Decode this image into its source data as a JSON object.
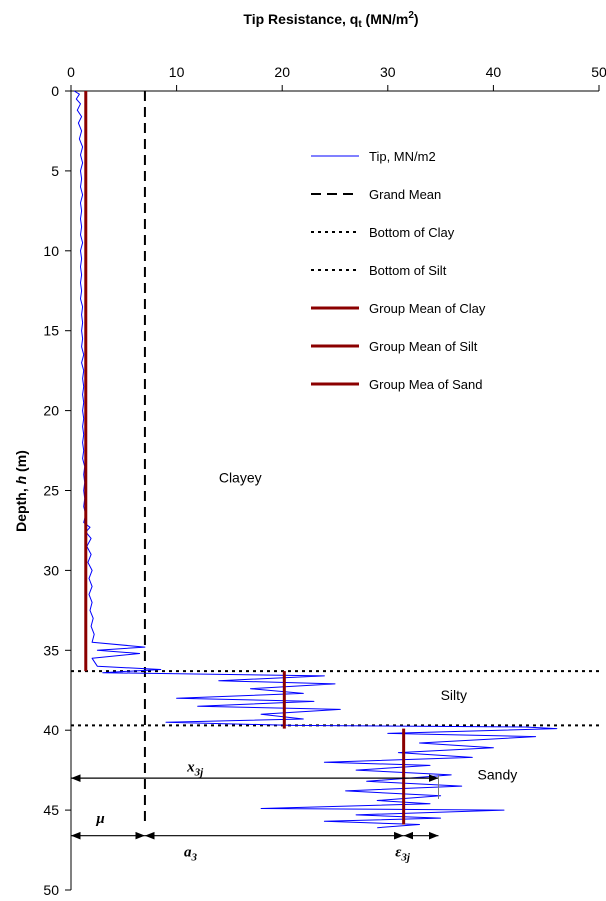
{
  "chart_data": {
    "type": "line",
    "title": "Tip Resistance, q",
    "title_sub": "t",
    "title_unit_prefix": " (MN/m",
    "title_unit_sup": "2",
    "title_unit_suffix": ")",
    "ylabel": "Depth, h (m)",
    "ylabel_prefix": "Depth, ",
    "ylabel_var": "h",
    "ylabel_suffix": " (m)",
    "x_axis_position": "top",
    "y_axis_reversed": true,
    "xlim": [
      0,
      50
    ],
    "ylim": [
      0,
      50
    ],
    "x_ticks": [
      "0",
      "10",
      "20",
      "30",
      "40",
      "50"
    ],
    "y_ticks": [
      "0",
      "5",
      "10",
      "15",
      "20",
      "25",
      "30",
      "35",
      "40",
      "45",
      "50"
    ],
    "grid": false,
    "legend_position": "upper-right inside plot",
    "legend": [
      {
        "label": "Tip, MN/m2",
        "style": "solid-thin",
        "color": "#0000ff"
      },
      {
        "label": "Grand Mean",
        "style": "dashed",
        "color": "#000000"
      },
      {
        "label": "Bottom of Clay",
        "style": "dotted",
        "color": "#000000"
      },
      {
        "label": "Bottom of Silt",
        "style": "dotted",
        "color": "#000000"
      },
      {
        "label": "Group Mean of Clay",
        "style": "solid-thick",
        "color": "#8b0000"
      },
      {
        "label": "Group Mean of Silt",
        "style": "solid-thick",
        "color": "#8b0000"
      },
      {
        "label": "Group Mea of Sand",
        "style": "solid-thick",
        "color": "#8b0000"
      }
    ],
    "series": [
      {
        "name": "Tip, MN/m2",
        "color": "#0000ff",
        "points": [
          [
            0.3,
            0.0
          ],
          [
            0.8,
            0.2
          ],
          [
            0.5,
            0.5
          ],
          [
            0.9,
            0.8
          ],
          [
            0.6,
            1.2
          ],
          [
            1.0,
            1.6
          ],
          [
            0.7,
            2.0
          ],
          [
            1.0,
            2.5
          ],
          [
            0.8,
            3.0
          ],
          [
            1.1,
            3.5
          ],
          [
            0.9,
            4.0
          ],
          [
            1.1,
            4.5
          ],
          [
            0.9,
            5.0
          ],
          [
            1.0,
            5.5
          ],
          [
            0.9,
            6.0
          ],
          [
            1.1,
            6.5
          ],
          [
            0.9,
            7.0
          ],
          [
            1.0,
            7.5
          ],
          [
            0.9,
            8.0
          ],
          [
            1.0,
            8.5
          ],
          [
            0.9,
            9.0
          ],
          [
            1.1,
            9.5
          ],
          [
            0.9,
            10.0
          ],
          [
            1.0,
            10.5
          ],
          [
            0.9,
            11.0
          ],
          [
            1.0,
            11.5
          ],
          [
            0.9,
            12.0
          ],
          [
            1.0,
            12.5
          ],
          [
            0.9,
            13.0
          ],
          [
            1.1,
            13.5
          ],
          [
            1.0,
            14.0
          ],
          [
            1.1,
            14.5
          ],
          [
            1.0,
            15.0
          ],
          [
            1.1,
            15.5
          ],
          [
            1.0,
            16.0
          ],
          [
            1.2,
            16.5
          ],
          [
            1.0,
            17.0
          ],
          [
            1.2,
            17.5
          ],
          [
            1.1,
            18.0
          ],
          [
            1.2,
            18.5
          ],
          [
            1.1,
            19.0
          ],
          [
            1.2,
            19.5
          ],
          [
            1.1,
            20.0
          ],
          [
            1.2,
            20.5
          ],
          [
            1.1,
            21.0
          ],
          [
            1.2,
            21.5
          ],
          [
            1.1,
            22.0
          ],
          [
            1.2,
            22.5
          ],
          [
            1.1,
            23.0
          ],
          [
            1.3,
            23.5
          ],
          [
            1.2,
            24.0
          ],
          [
            1.3,
            24.5
          ],
          [
            1.2,
            25.0
          ],
          [
            1.3,
            25.5
          ],
          [
            1.2,
            26.0
          ],
          [
            1.4,
            26.5
          ],
          [
            1.2,
            27.0
          ],
          [
            1.8,
            27.3
          ],
          [
            1.4,
            27.6
          ],
          [
            1.9,
            28.0
          ],
          [
            1.5,
            28.5
          ],
          [
            1.9,
            29.0
          ],
          [
            1.6,
            29.5
          ],
          [
            2.0,
            30.0
          ],
          [
            1.7,
            30.5
          ],
          [
            2.0,
            31.0
          ],
          [
            1.7,
            31.5
          ],
          [
            2.0,
            32.0
          ],
          [
            1.8,
            32.5
          ],
          [
            2.1,
            33.0
          ],
          [
            1.9,
            33.5
          ],
          [
            2.2,
            34.0
          ],
          [
            2.0,
            34.5
          ],
          [
            7.0,
            34.8
          ],
          [
            2.5,
            35.0
          ],
          [
            6.5,
            35.2
          ],
          [
            2.0,
            35.5
          ],
          [
            2.5,
            36.0
          ],
          [
            8.5,
            36.2
          ],
          [
            3.0,
            36.4
          ],
          [
            24.0,
            36.6
          ],
          [
            14.0,
            36.9
          ],
          [
            25.0,
            37.1
          ],
          [
            17.0,
            37.4
          ],
          [
            22.0,
            37.7
          ],
          [
            10.0,
            38.0
          ],
          [
            23.0,
            38.2
          ],
          [
            12.0,
            38.5
          ],
          [
            25.5,
            38.7
          ],
          [
            18.0,
            39.0
          ],
          [
            22.0,
            39.3
          ],
          [
            9.0,
            39.5
          ],
          [
            21.0,
            39.7
          ],
          [
            43.0,
            39.8
          ],
          [
            46.0,
            39.9
          ],
          [
            30.0,
            40.2
          ],
          [
            44.0,
            40.4
          ],
          [
            33.0,
            40.8
          ],
          [
            40.0,
            41.1
          ],
          [
            31.0,
            41.4
          ],
          [
            38.0,
            41.7
          ],
          [
            24.0,
            42.0
          ],
          [
            34.0,
            42.2
          ],
          [
            27.0,
            42.5
          ],
          [
            36.0,
            42.8
          ],
          [
            28.0,
            43.2
          ],
          [
            37.0,
            43.5
          ],
          [
            26.0,
            43.8
          ],
          [
            35.0,
            44.1
          ],
          [
            29.0,
            44.4
          ],
          [
            34.0,
            44.6
          ],
          [
            18.0,
            44.9
          ],
          [
            41.0,
            45.0
          ],
          [
            27.0,
            45.3
          ],
          [
            35.0,
            45.5
          ],
          [
            24.0,
            45.7
          ],
          [
            33.0,
            45.9
          ],
          [
            29.0,
            46.1
          ]
        ]
      },
      {
        "name": "Grand Mean",
        "color": "#000000",
        "x": 7.0,
        "depth_range": [
          0,
          46.0
        ]
      },
      {
        "name": "Bottom of Clay",
        "color": "#000000",
        "depth": 36.3
      },
      {
        "name": "Bottom of Silt",
        "color": "#000000",
        "depth": 39.7
      },
      {
        "name": "Group Mean of Clay",
        "color": "#8b0000",
        "x": 1.4,
        "depth_range": [
          0,
          36.3
        ]
      },
      {
        "name": "Group Mean of Silt",
        "color": "#8b0000",
        "x": 20.2,
        "depth_range": [
          36.3,
          39.9
        ]
      },
      {
        "name": "Group Mea of Sand",
        "color": "#8b0000",
        "x": 31.5,
        "depth_range": [
          39.9,
          45.9
        ]
      }
    ],
    "zone_labels": [
      {
        "text": "Clayey",
        "x": 14.0,
        "y": 24.5
      },
      {
        "text": "Silty",
        "x": 35.0,
        "y": 38.1
      },
      {
        "text": "Sandy",
        "x": 38.5,
        "y": 43.1
      }
    ],
    "annotations": [
      {
        "symbol": "x",
        "subscript": "3j",
        "x": 11.0,
        "y": 42.6
      },
      {
        "symbol": "μ",
        "subscript": "",
        "x": 2.4,
        "y": 45.8
      },
      {
        "symbol": "a",
        "subscript": "3",
        "x": 10.7,
        "y": 47.9
      },
      {
        "symbol": "ε",
        "subscript": "3j",
        "x": 30.7,
        "y": 47.9
      }
    ],
    "arrows": [
      {
        "from": [
          0,
          43.0
        ],
        "to": [
          34.8,
          43.0
        ]
      },
      {
        "from": [
          0,
          46.6
        ],
        "to": [
          7.0,
          46.6
        ]
      },
      {
        "from": [
          7.0,
          46.6
        ],
        "to": [
          31.5,
          46.6
        ]
      },
      {
        "from": [
          31.5,
          46.6
        ],
        "to": [
          34.8,
          46.6
        ]
      }
    ]
  }
}
